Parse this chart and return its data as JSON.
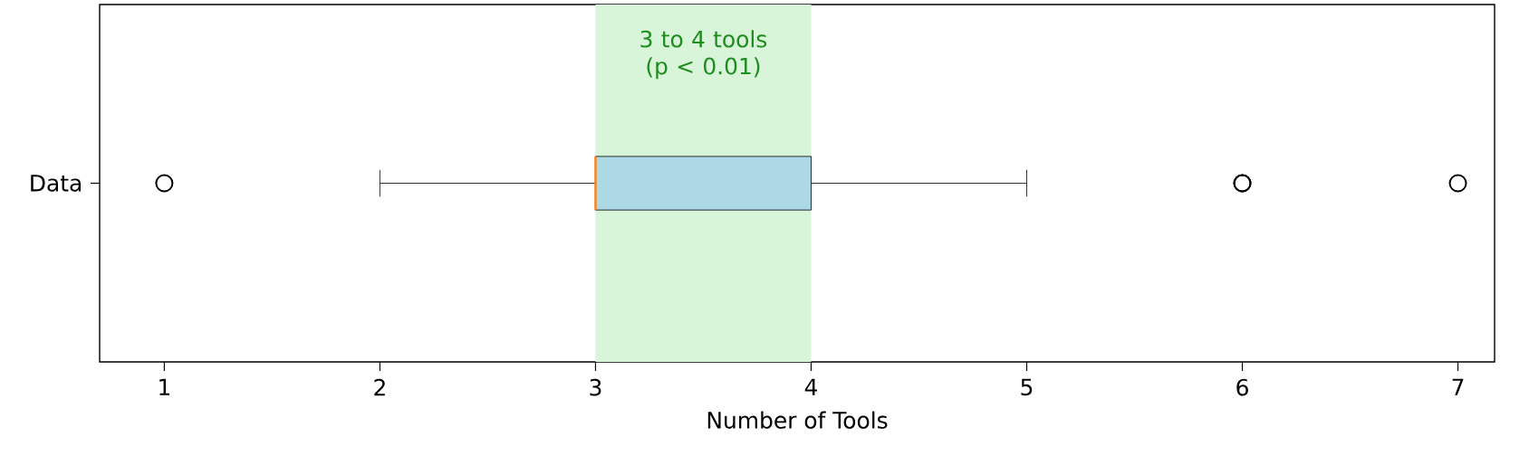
{
  "chart_data": {
    "type": "box",
    "orientation": "horizontal",
    "categories": [
      "Data"
    ],
    "series": [
      {
        "color": "#add8e6",
        "boxes": [
          {
            "low": 2,
            "q1": 3,
            "median": 3,
            "q3": 4,
            "high": 5,
            "outliers": [
              1,
              6,
              6,
              7
            ]
          }
        ]
      }
    ],
    "xlabel": "Number of Tools",
    "xlim": [
      0.7,
      7.17
    ],
    "xticks": [
      1,
      2,
      3,
      4,
      5,
      6,
      7
    ],
    "bands": [
      {
        "axis": "x",
        "from": 3,
        "to": 4,
        "label": "3 to 4 tools (p < 0.01)",
        "color": "#d9f5d9"
      }
    ]
  }
}
